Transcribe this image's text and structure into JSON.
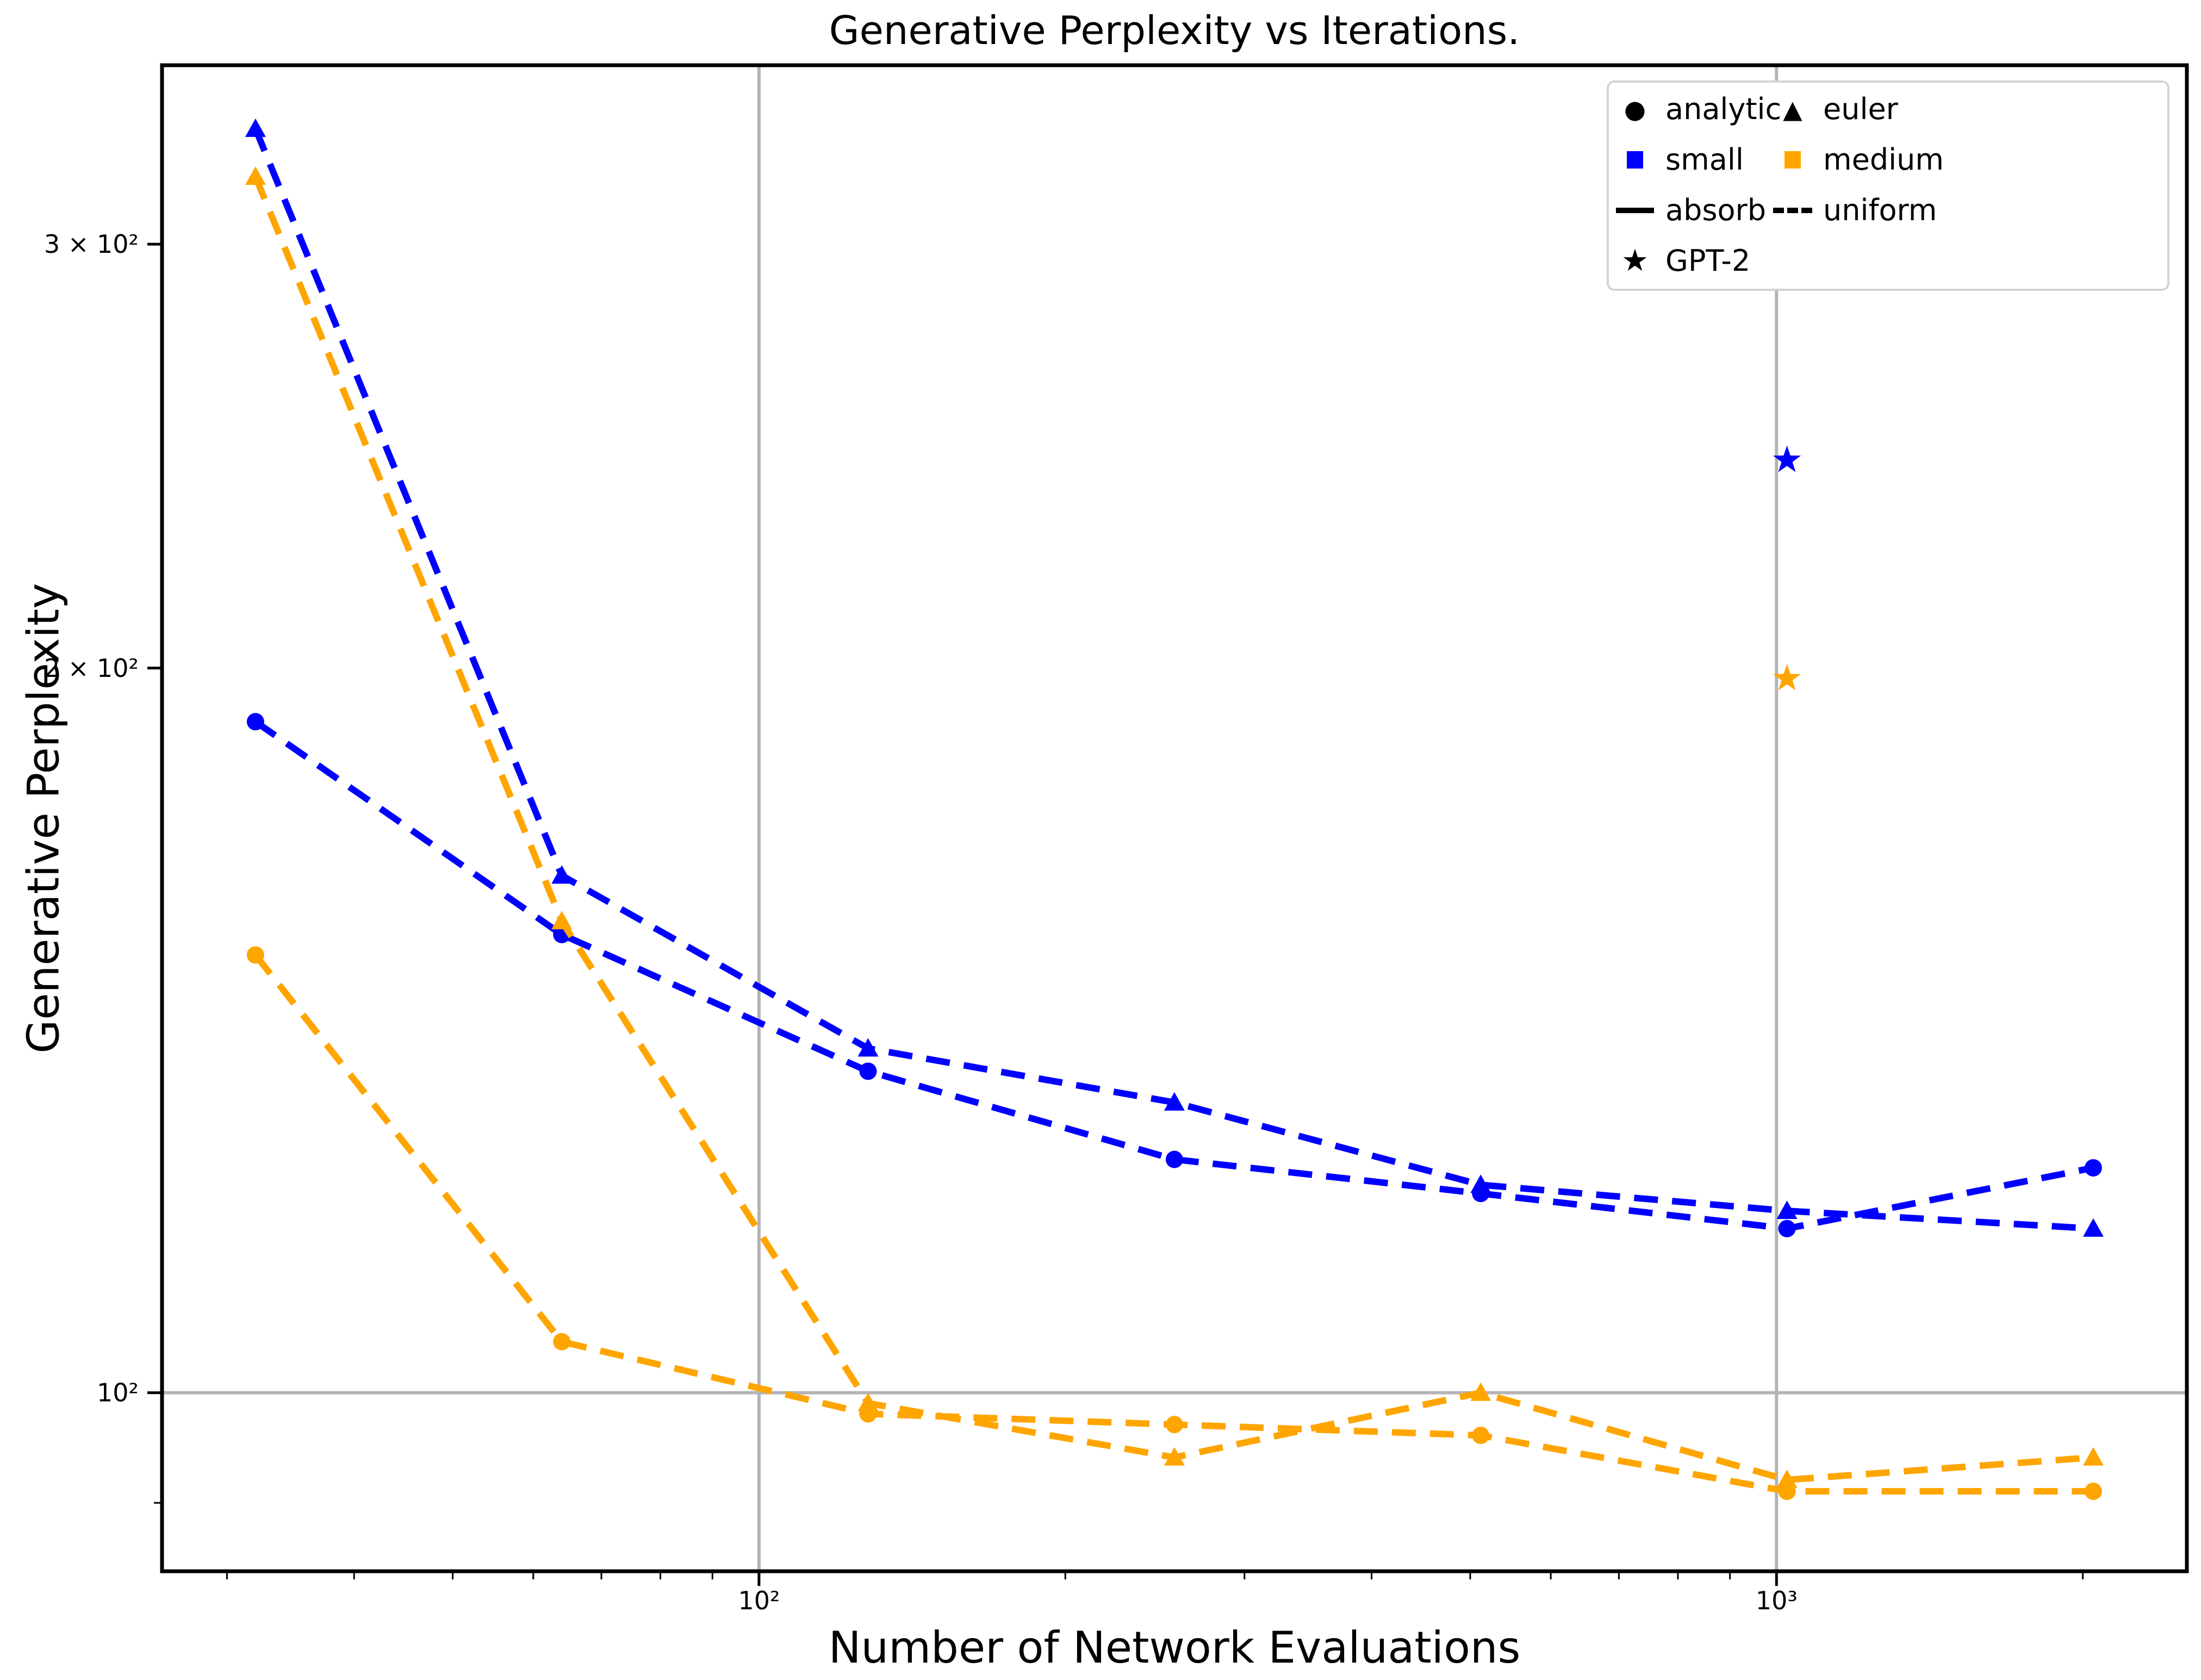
{
  "figure": {
    "title": "Generative Perplexity vs Iterations.",
    "xlabel": "Number of Network Evaluations",
    "ylabel": "Generative Perplexity"
  },
  "legend": {
    "items": [
      {
        "label": "analytic",
        "symbol": "circle",
        "color": "#000000"
      },
      {
        "label": "euler",
        "symbol": "triangle",
        "color": "#000000"
      },
      {
        "label": "small",
        "symbol": "square",
        "color": "#0000ff"
      },
      {
        "label": "medium",
        "symbol": "square",
        "color": "#ffa500"
      },
      {
        "label": "absorb",
        "symbol": "solid-line",
        "color": "#000000"
      },
      {
        "label": "uniform",
        "symbol": "dashed-line",
        "color": "#000000"
      },
      {
        "label": "GPT-2",
        "symbol": "star",
        "color": "#000000"
      }
    ]
  },
  "chart_data": {
    "type": "line",
    "title": "Generative Perplexity vs Iterations.",
    "xlabel": "Number of Network Evaluations",
    "ylabel": "Generative Perplexity",
    "xscale": "log",
    "yscale": "log",
    "x": [
      32,
      64,
      128,
      256,
      512,
      1024,
      2048
    ],
    "series": [
      {
        "name": "small-analytic-uniform",
        "color": "#0000ff",
        "marker": "circle",
        "linestyle": "dashed",
        "values": [
          190,
          155,
          136,
          125,
          121,
          117,
          124
        ]
      },
      {
        "name": "small-euler-uniform",
        "color": "#0000ff",
        "marker": "triangle",
        "linestyle": "dashed",
        "values": [
          335,
          164,
          139,
          132,
          122,
          119,
          117
        ]
      },
      {
        "name": "medium-analytic-uniform",
        "color": "#ffa500",
        "marker": "circle",
        "linestyle": "dashed",
        "values": [
          152,
          105,
          98,
          97,
          96,
          91,
          91
        ]
      },
      {
        "name": "medium-euler-uniform",
        "color": "#ffa500",
        "marker": "triangle",
        "linestyle": "dashed",
        "values": [
          320,
          157,
          99,
          94,
          100,
          92,
          94
        ]
      }
    ],
    "points": [
      {
        "name": "GPT-2-small",
        "color": "#0000ff",
        "marker": "star",
        "x": 1024,
        "y": 244
      },
      {
        "name": "GPT-2-medium",
        "color": "#ffa500",
        "marker": "star",
        "x": 1024,
        "y": 198
      }
    ],
    "xlim": [
      25.9,
      2531
    ],
    "ylim": [
      84.3,
      356
    ],
    "xticks": [
      {
        "v": 100,
        "label": "10²"
      },
      {
        "v": 1000,
        "label": "10³"
      }
    ],
    "yticks": [
      {
        "v": 100,
        "label": "10²"
      },
      {
        "v": 200,
        "label": "2 × 10²"
      },
      {
        "v": 300,
        "label": "3 × 10²"
      }
    ],
    "x_minor_ticks": [
      30,
      40,
      50,
      60,
      70,
      80,
      90,
      200,
      300,
      400,
      500,
      600,
      700,
      800,
      900,
      2000
    ],
    "y_minor_ticks": [
      90
    ],
    "grid_x": [
      100,
      1000
    ],
    "grid_y": [
      100
    ],
    "grid_color": "#b4b4b4",
    "legend_position": "upper right",
    "colors": {
      "small": "#0000ff",
      "medium": "#ffa500",
      "grid": "#b4b4b4",
      "text": "#000000"
    }
  }
}
